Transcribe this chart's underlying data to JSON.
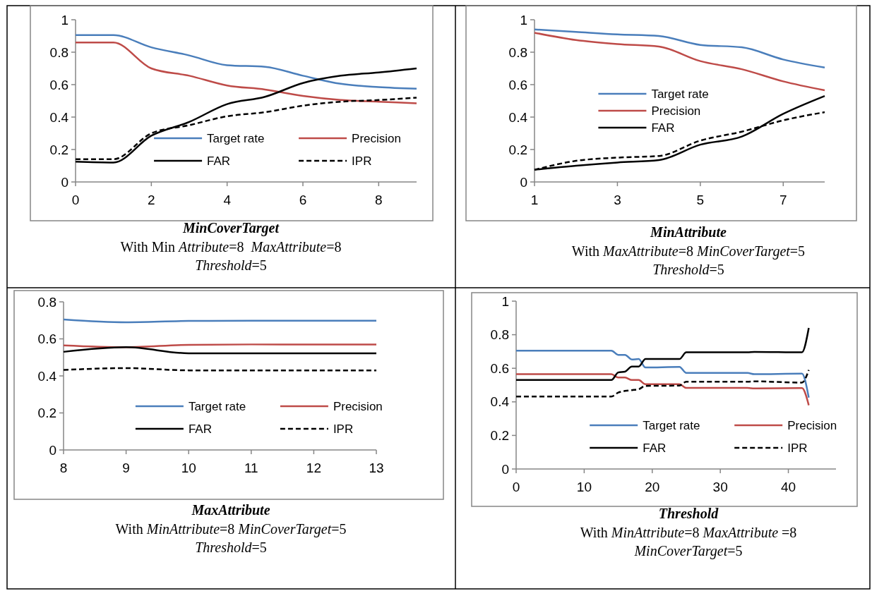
{
  "chart_data": [
    {
      "type": "line",
      "xlabel": "MinCoverTarget",
      "annotations": [
        "With Min Attribute=8  MaxAttribute=8",
        "Threshold=5"
      ],
      "x": [
        0,
        1,
        2,
        3,
        4,
        5,
        6,
        7,
        8,
        9
      ],
      "xlim": [
        0,
        9
      ],
      "xticks": [
        0,
        2,
        4,
        6,
        8
      ],
      "ylim": [
        0,
        1
      ],
      "yticks": [
        0,
        0.2,
        0.4,
        0.6,
        0.8,
        1
      ],
      "legend": "bottom",
      "series": [
        {
          "name": "Target rate",
          "color": "#4a7ebb",
          "line_style": "solid",
          "values": [
            0.905,
            0.905,
            0.83,
            0.78,
            0.72,
            0.71,
            0.655,
            0.605,
            0.585,
            0.575
          ]
        },
        {
          "name": "Precision",
          "color": "#be4b48",
          "line_style": "solid",
          "values": [
            0.86,
            0.86,
            0.7,
            0.655,
            0.595,
            0.57,
            0.53,
            0.505,
            0.495,
            0.485
          ]
        },
        {
          "name": "FAR",
          "color": "#000000",
          "line_style": "solid",
          "values": [
            0.125,
            0.12,
            0.285,
            0.37,
            0.48,
            0.525,
            0.61,
            0.655,
            0.675,
            0.7
          ]
        },
        {
          "name": "IPR",
          "color": "#000000",
          "line_style": "dashed",
          "values": [
            0.14,
            0.14,
            0.3,
            0.35,
            0.405,
            0.43,
            0.47,
            0.495,
            0.505,
            0.52
          ]
        }
      ]
    },
    {
      "type": "line",
      "xlabel": "MinAttribute",
      "annotations": [
        "With MaxAttribute=8 MinCoverTarget=5",
        "Threshold=5"
      ],
      "x": [
        1,
        2,
        3,
        4,
        5,
        6,
        7,
        8
      ],
      "xlim": [
        1,
        8
      ],
      "xticks": [
        1,
        3,
        5,
        7
      ],
      "ylim": [
        0,
        1
      ],
      "yticks": [
        0,
        0.2,
        0.4,
        0.6,
        0.8,
        1
      ],
      "legend": "left",
      "series": [
        {
          "name": "Target rate",
          "color": "#4a7ebb",
          "line_style": "solid",
          "values": [
            0.94,
            0.925,
            0.91,
            0.9,
            0.845,
            0.83,
            0.755,
            0.705
          ]
        },
        {
          "name": "Precision",
          "color": "#be4b48",
          "line_style": "solid",
          "values": [
            0.92,
            0.875,
            0.85,
            0.835,
            0.745,
            0.695,
            0.62,
            0.565
          ]
        },
        {
          "name": "FAR",
          "color": "#000000",
          "line_style": "solid",
          "values": [
            0.075,
            0.1,
            0.12,
            0.135,
            0.23,
            0.28,
            0.42,
            0.53
          ]
        },
        {
          "color": "#000000",
          "line_style": "dashed",
          "values": [
            0.075,
            0.13,
            0.15,
            0.16,
            0.255,
            0.31,
            0.38,
            0.43
          ]
        }
      ]
    },
    {
      "type": "line",
      "xlabel": "MaxAttribute",
      "annotations": [
        "With MinAttribute=8 MinCoverTarget=5",
        "Threshold=5"
      ],
      "x": [
        8,
        9,
        10,
        11,
        12,
        13
      ],
      "xlim": [
        8,
        13
      ],
      "xticks": [
        8,
        9,
        10,
        11,
        12,
        13
      ],
      "ylim": [
        0,
        0.8
      ],
      "yticks": [
        0,
        0.2,
        0.4,
        0.6,
        0.8
      ],
      "legend": "bottom",
      "series": [
        {
          "name": "Target rate",
          "color": "#4a7ebb",
          "line_style": "solid",
          "values": [
            0.705,
            0.69,
            0.697,
            0.698,
            0.698,
            0.698
          ]
        },
        {
          "name": "Precision",
          "color": "#be4b48",
          "line_style": "solid",
          "values": [
            0.565,
            0.555,
            0.568,
            0.57,
            0.57,
            0.57
          ]
        },
        {
          "name": "FAR",
          "color": "#000000",
          "line_style": "solid",
          "values": [
            0.53,
            0.555,
            0.522,
            0.522,
            0.522,
            0.522
          ]
        },
        {
          "name": "IPR",
          "color": "#000000",
          "line_style": "dashed",
          "values": [
            0.432,
            0.442,
            0.43,
            0.43,
            0.43,
            0.43
          ]
        }
      ]
    },
    {
      "type": "line",
      "xlabel": "Threshold",
      "annotations": [
        "With MinAttribute=8 MaxAttribute =8",
        "MinCoverTarget=5"
      ],
      "x": [
        0,
        14,
        15,
        16,
        17,
        18,
        19,
        24,
        25,
        34,
        35,
        42,
        43
      ],
      "xlim": [
        0,
        47
      ],
      "xticks": [
        0,
        10,
        20,
        30,
        40
      ],
      "ylim": [
        0,
        1
      ],
      "yticks": [
        0,
        0.2,
        0.4,
        0.6,
        0.8,
        1
      ],
      "legend": "bottom",
      "series": [
        {
          "name": "Target rate",
          "color": "#4a7ebb",
          "line_style": "solid",
          "values": [
            0.705,
            0.705,
            0.68,
            0.68,
            0.652,
            0.655,
            0.605,
            0.608,
            0.572,
            0.572,
            0.565,
            0.568,
            0.425
          ]
        },
        {
          "name": "Precision",
          "color": "#be4b48",
          "line_style": "solid",
          "values": [
            0.565,
            0.565,
            0.545,
            0.545,
            0.53,
            0.53,
            0.505,
            0.505,
            0.483,
            0.483,
            0.48,
            0.482,
            0.38
          ]
        },
        {
          "name": "FAR",
          "color": "#000000",
          "line_style": "solid",
          "values": [
            0.53,
            0.53,
            0.575,
            0.58,
            0.61,
            0.61,
            0.655,
            0.655,
            0.695,
            0.695,
            0.698,
            0.695,
            0.84
          ]
        },
        {
          "name": "IPR",
          "color": "#000000",
          "line_style": "dashed",
          "values": [
            0.432,
            0.432,
            0.455,
            0.465,
            0.47,
            0.475,
            0.495,
            0.497,
            0.52,
            0.52,
            0.522,
            0.515,
            0.59
          ]
        }
      ]
    }
  ]
}
